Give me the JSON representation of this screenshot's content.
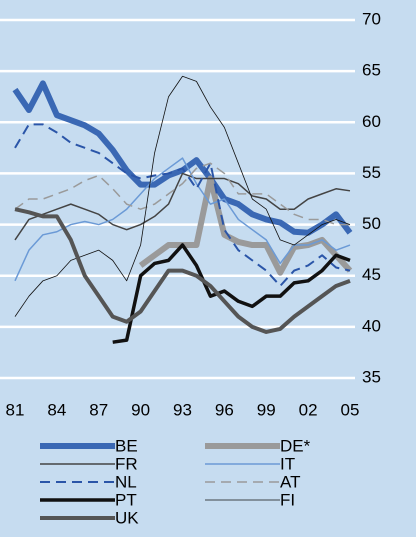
{
  "chart_data": {
    "type": "line",
    "x": [
      1981,
      1982,
      1983,
      1984,
      1985,
      1986,
      1987,
      1988,
      1989,
      1990,
      1991,
      1992,
      1993,
      1994,
      1995,
      1996,
      1997,
      1998,
      1999,
      2000,
      2001,
      2002,
      2003,
      2004,
      2005
    ],
    "xlim": [
      1981,
      2005
    ],
    "xticks": [
      {
        "value": 1981,
        "label": "81"
      },
      {
        "value": 1984,
        "label": "84"
      },
      {
        "value": 1987,
        "label": "87"
      },
      {
        "value": 1990,
        "label": "90"
      },
      {
        "value": 1993,
        "label": "93"
      },
      {
        "value": 1996,
        "label": "96"
      },
      {
        "value": 1999,
        "label": "99"
      },
      {
        "value": 2002,
        "label": "02"
      },
      {
        "value": 2005,
        "label": "05"
      }
    ],
    "ylim": [
      35,
      70
    ],
    "yticks": [
      35,
      40,
      45,
      50,
      55,
      60,
      65,
      70
    ],
    "grid": true,
    "series": [
      {
        "name": "BE",
        "color": "#3a68b4",
        "width": 6,
        "values": [
          63.2,
          61.2,
          63.8,
          60.7,
          60.2,
          59.7,
          58.9,
          57.3,
          55.3,
          53.9,
          53.9,
          54.8,
          55.3,
          56.3,
          54.5,
          52.5,
          52.0,
          51.0,
          50.5,
          50.2,
          49.3,
          49.2,
          50.0,
          51.0,
          49.2
        ]
      },
      {
        "name": "DE*",
        "color": "#9a9a9a",
        "width": 6,
        "values": [
          null,
          null,
          null,
          null,
          null,
          null,
          null,
          null,
          null,
          46.0,
          47.0,
          48.0,
          48.0,
          48.0,
          54.5,
          49.0,
          48.3,
          48.0,
          48.0,
          45.3,
          47.8,
          48.0,
          48.5,
          47.0,
          45.5
        ]
      },
      {
        "name": "FR",
        "color": "#444444",
        "width": 1.5,
        "values": [
          48.5,
          50.5,
          51.0,
          51.5,
          52.0,
          51.5,
          51.0,
          50.0,
          49.5,
          50.0,
          50.8,
          52.0,
          55.0,
          54.5,
          54.5,
          54.5,
          54.0,
          52.8,
          52.5,
          51.5,
          51.5,
          52.5,
          53.0,
          53.5,
          53.3
        ]
      },
      {
        "name": "IT",
        "color": "#6b9ad6",
        "width": 1.5,
        "values": [
          44.5,
          47.5,
          49.0,
          49.3,
          50.0,
          50.3,
          50.0,
          50.5,
          51.5,
          53.0,
          54.5,
          55.5,
          56.5,
          54.0,
          52.0,
          52.5,
          50.5,
          49.5,
          48.5,
          46.2,
          48.0,
          48.0,
          48.5,
          47.5,
          48.0
        ]
      },
      {
        "name": "NL",
        "color": "#2a55a8",
        "width": 2,
        "dashed": true,
        "values": [
          57.5,
          59.8,
          59.8,
          59.0,
          58.0,
          57.5,
          57.0,
          56.0,
          55.0,
          54.5,
          54.8,
          55.0,
          55.5,
          53.5,
          56.0,
          49.5,
          47.5,
          46.5,
          45.5,
          44.0,
          45.5,
          46.0,
          47.0,
          45.8,
          45.5
        ]
      },
      {
        "name": "AT",
        "color": "#9a9a9a",
        "width": 1.5,
        "dashed": true,
        "values": [
          51.5,
          52.5,
          52.5,
          53.0,
          53.5,
          54.3,
          54.8,
          53.5,
          52.0,
          51.5,
          52.0,
          53.0,
          54.0,
          55.5,
          56.0,
          55.0,
          53.0,
          53.0,
          53.0,
          52.0,
          51.0,
          50.5,
          50.5,
          50.0,
          50.0
        ]
      },
      {
        "name": "PT",
        "color": "#111111",
        "width": 3.5,
        "values": [
          null,
          null,
          null,
          null,
          null,
          null,
          null,
          38.5,
          38.7,
          45.0,
          46.2,
          46.5,
          48.0,
          46.0,
          43.0,
          43.5,
          42.5,
          42.0,
          43.0,
          43.0,
          44.3,
          44.5,
          45.5,
          47.0,
          46.5
        ]
      },
      {
        "name": "FI",
        "color": "#111111",
        "width": 0.8,
        "values": [
          41.0,
          43.0,
          44.5,
          45.0,
          46.5,
          47.0,
          47.5,
          46.5,
          44.5,
          48.0,
          57.0,
          62.5,
          64.5,
          64.0,
          61.5,
          59.5,
          56.0,
          52.5,
          51.5,
          48.5,
          48.0,
          49.0,
          50.0,
          50.5,
          50.0
        ]
      },
      {
        "name": "UK",
        "color": "#555555",
        "width": 4,
        "values": [
          51.5,
          51.2,
          50.8,
          50.8,
          48.5,
          45.0,
          43.0,
          41.0,
          40.5,
          41.5,
          43.5,
          45.5,
          45.5,
          45.0,
          44.0,
          42.5,
          41.0,
          40.0,
          39.5,
          39.8,
          41.0,
          42.0,
          43.0,
          44.0,
          44.5
        ]
      }
    ]
  }
}
